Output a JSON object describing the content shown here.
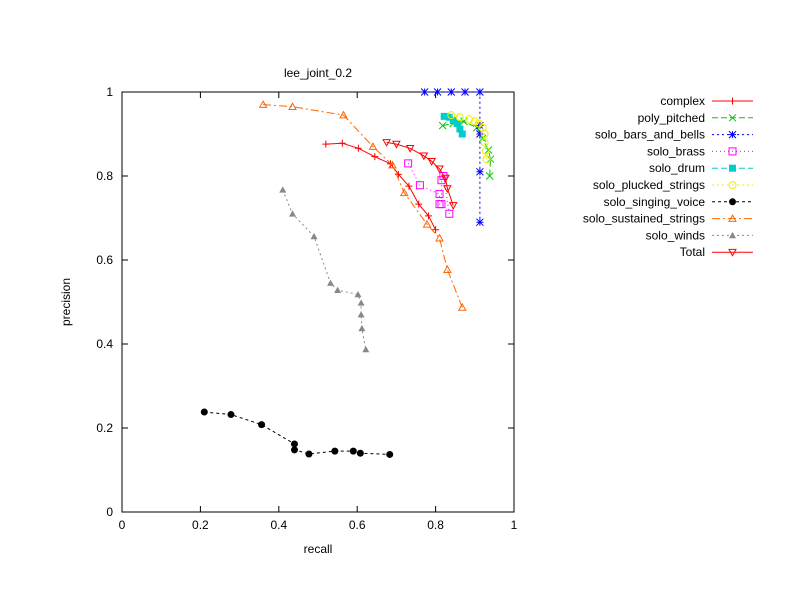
{
  "chart_data": {
    "type": "line",
    "title": "lee_joint_0.2",
    "xlabel": "recall",
    "ylabel": "precision",
    "xlim": [
      0,
      1
    ],
    "ylim": [
      0,
      1
    ],
    "xticks": [
      "0",
      "0.2",
      "0.4",
      "0.6",
      "0.8",
      "1"
    ],
    "yticks": [
      "0",
      "0.2",
      "0.4",
      "0.6",
      "0.8",
      "1"
    ],
    "grid": false,
    "legend_position": "right, outside plot area",
    "series": [
      {
        "name": "complex",
        "color": "#ff0000",
        "marker": "plus",
        "dash": "",
        "points": [
          [
            0.52,
            0.876
          ],
          [
            0.562,
            0.878
          ],
          [
            0.603,
            0.866
          ],
          [
            0.645,
            0.846
          ],
          [
            0.685,
            0.829
          ],
          [
            0.705,
            0.804
          ],
          [
            0.732,
            0.776
          ],
          [
            0.757,
            0.733
          ],
          [
            0.782,
            0.705
          ],
          [
            0.8,
            0.672
          ]
        ]
      },
      {
        "name": "poly_pitched",
        "color": "#00cc00",
        "marker": "x",
        "dash": "6,3",
        "points": [
          [
            0.818,
            0.92
          ],
          [
            0.845,
            0.925
          ],
          [
            0.872,
            0.93
          ],
          [
            0.905,
            0.915
          ],
          [
            0.92,
            0.89
          ],
          [
            0.935,
            0.862
          ],
          [
            0.94,
            0.84
          ],
          [
            0.938,
            0.8
          ]
        ]
      },
      {
        "name": "solo_bars_and_bells",
        "color": "#0000ff",
        "marker": "star",
        "dash": "2,3",
        "points": [
          [
            0.772,
            1.0
          ],
          [
            0.805,
            1.0
          ],
          [
            0.84,
            1.0
          ],
          [
            0.875,
            1.0
          ],
          [
            0.913,
            1.0
          ],
          [
            0.913,
            0.92
          ],
          [
            0.913,
            0.9
          ],
          [
            0.913,
            0.81
          ],
          [
            0.913,
            0.69
          ]
        ]
      },
      {
        "name": "solo_brass",
        "color": "#ff00ff",
        "marker": "square",
        "dash": "1,3",
        "points": [
          [
            0.73,
            0.83
          ],
          [
            0.76,
            0.778
          ],
          [
            0.81,
            0.757
          ],
          [
            0.81,
            0.733
          ],
          [
            0.815,
            0.733
          ],
          [
            0.815,
            0.79
          ],
          [
            0.82,
            0.8
          ],
          [
            0.835,
            0.71
          ]
        ]
      },
      {
        "name": "solo_drum",
        "color": "#00cccc",
        "marker": "filled-square",
        "dash": "6,3",
        "points": [
          [
            0.822,
            0.942
          ],
          [
            0.835,
            0.94
          ],
          [
            0.845,
            0.932
          ],
          [
            0.855,
            0.925
          ],
          [
            0.862,
            0.912
          ],
          [
            0.868,
            0.9
          ]
        ]
      },
      {
        "name": "solo_plucked_strings",
        "color": "#eeee00",
        "marker": "circle",
        "dash": "2,3",
        "points": [
          [
            0.84,
            0.945
          ],
          [
            0.862,
            0.94
          ],
          [
            0.885,
            0.935
          ],
          [
            0.9,
            0.93
          ],
          [
            0.91,
            0.925
          ],
          [
            0.92,
            0.915
          ],
          [
            0.925,
            0.9
          ],
          [
            0.925,
            0.88
          ],
          [
            0.928,
            0.86
          ],
          [
            0.93,
            0.84
          ]
        ]
      },
      {
        "name": "solo_singing_voice",
        "color": "#000000",
        "marker": "filled-circle",
        "dash": "3,3",
        "points": [
          [
            0.21,
            0.238
          ],
          [
            0.278,
            0.232
          ],
          [
            0.356,
            0.208
          ],
          [
            0.44,
            0.162
          ],
          [
            0.44,
            0.148
          ],
          [
            0.477,
            0.138
          ],
          [
            0.543,
            0.145
          ],
          [
            0.59,
            0.145
          ],
          [
            0.608,
            0.14
          ],
          [
            0.683,
            0.137
          ]
        ]
      },
      {
        "name": "solo_sustained_strings",
        "color": "#ff6600",
        "marker": "triangle",
        "dash": "8,3,2,3",
        "points": [
          [
            0.36,
            0.97
          ],
          [
            0.435,
            0.965
          ],
          [
            0.565,
            0.945
          ],
          [
            0.64,
            0.87
          ],
          [
            0.69,
            0.826
          ],
          [
            0.72,
            0.76
          ],
          [
            0.778,
            0.685
          ],
          [
            0.81,
            0.652
          ],
          [
            0.83,
            0.577
          ],
          [
            0.868,
            0.487
          ]
        ]
      },
      {
        "name": "solo_winds",
        "color": "#888888",
        "marker": "filled-triangle",
        "dash": "2,3",
        "points": [
          [
            0.41,
            0.767
          ],
          [
            0.435,
            0.71
          ],
          [
            0.49,
            0.656
          ],
          [
            0.532,
            0.545
          ],
          [
            0.55,
            0.528
          ],
          [
            0.602,
            0.518
          ],
          [
            0.61,
            0.498
          ],
          [
            0.61,
            0.47
          ],
          [
            0.612,
            0.437
          ],
          [
            0.622,
            0.387
          ]
        ]
      },
      {
        "name": "Total",
        "color": "#ff0000",
        "marker": "inv-triangle",
        "dash": "",
        "points": [
          [
            0.675,
            0.88
          ],
          [
            0.7,
            0.876
          ],
          [
            0.735,
            0.866
          ],
          [
            0.77,
            0.848
          ],
          [
            0.79,
            0.835
          ],
          [
            0.81,
            0.817
          ],
          [
            0.825,
            0.795
          ],
          [
            0.83,
            0.77
          ],
          [
            0.845,
            0.73
          ]
        ]
      }
    ]
  }
}
